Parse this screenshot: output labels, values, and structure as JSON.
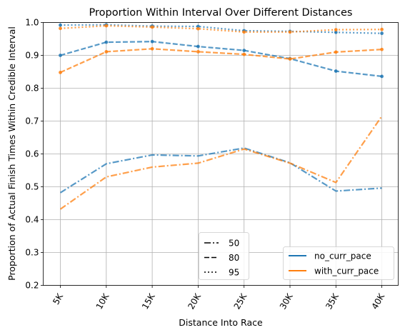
{
  "chart_data": {
    "type": "line",
    "title": "Proportion Within Interval Over Different Distances",
    "xlabel": "Distance Into Race",
    "ylabel": "Proportion of Actual Finish Times Within Credible Interval",
    "categories": [
      "5K",
      "10K",
      "15K",
      "20K",
      "25K",
      "30K",
      "35K",
      "40K"
    ],
    "ylim": [
      0.2,
      1.0
    ],
    "yticks": [
      "0.2",
      "0.3",
      "0.4",
      "0.5",
      "0.6",
      "0.7",
      "0.8",
      "0.9",
      "1.0"
    ],
    "grid": true,
    "colors": {
      "no_curr_pace": "#1f77b4",
      "with_curr_pace": "#ff7f0e"
    },
    "series": [
      {
        "name": "no_curr_pace",
        "interval": "50",
        "style": "dashdot",
        "markers": false,
        "values": [
          0.482,
          0.57,
          0.597,
          0.594,
          0.618,
          0.573,
          0.487,
          0.496
        ]
      },
      {
        "name": "with_curr_pace",
        "interval": "50",
        "style": "dashdot",
        "markers": false,
        "values": [
          0.432,
          0.53,
          0.56,
          0.572,
          0.615,
          0.572,
          0.513,
          0.715
        ]
      },
      {
        "name": "no_curr_pace",
        "interval": "80",
        "style": "dashed",
        "markers": true,
        "values": [
          0.9,
          0.94,
          0.942,
          0.927,
          0.915,
          0.89,
          0.852,
          0.836
        ]
      },
      {
        "name": "with_curr_pace",
        "interval": "80",
        "style": "dashed",
        "markers": true,
        "values": [
          0.848,
          0.911,
          0.92,
          0.911,
          0.903,
          0.889,
          0.91,
          0.918
        ]
      },
      {
        "name": "no_curr_pace",
        "interval": "95",
        "style": "dotted",
        "markers": true,
        "values": [
          0.992,
          0.993,
          0.989,
          0.988,
          0.975,
          0.973,
          0.97,
          0.967
        ]
      },
      {
        "name": "with_curr_pace",
        "interval": "95",
        "style": "dotted",
        "markers": true,
        "values": [
          0.982,
          0.99,
          0.986,
          0.981,
          0.971,
          0.971,
          0.978,
          0.979
        ]
      }
    ],
    "legend_styles": {
      "location": "bottom-center",
      "entries": [
        {
          "label": "50",
          "style": "dashdot"
        },
        {
          "label": "80",
          "style": "dashed"
        },
        {
          "label": "95",
          "style": "dotted"
        }
      ]
    },
    "legend_colors": {
      "location": "bottom-right",
      "entries": [
        {
          "label": "no_curr_pace",
          "color": "#1f77b4"
        },
        {
          "label": "with_curr_pace",
          "color": "#ff7f0e"
        }
      ]
    }
  }
}
